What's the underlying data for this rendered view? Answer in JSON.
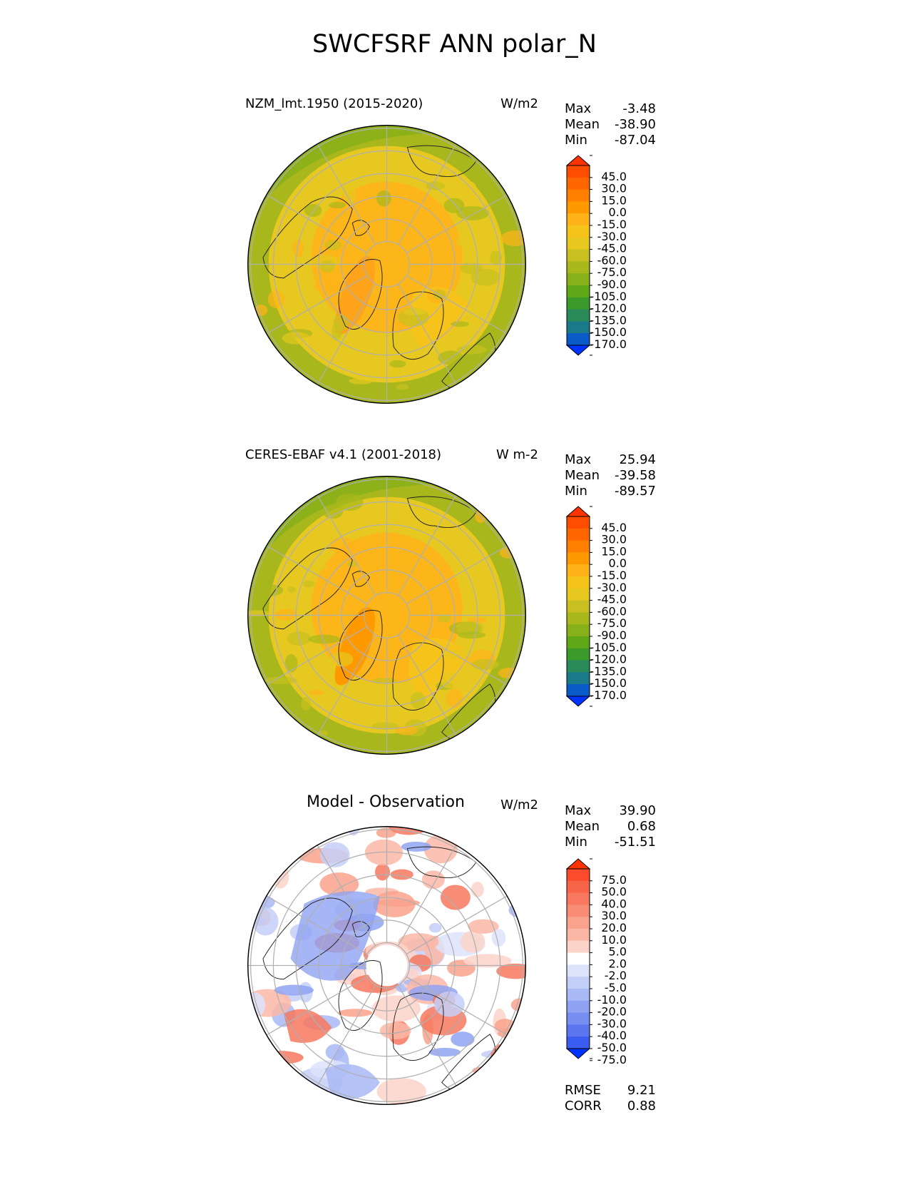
{
  "figure_title": "SWCFSRF ANN polar_N",
  "panels": [
    {
      "title": "NZM_lmt.1950 (2015-2020)",
      "units": "W/m2",
      "stats": {
        "max_label": "Max",
        "max": "-3.48",
        "mean_label": "Mean",
        "mean": "-38.90",
        "min_label": "Min",
        "min": "-87.04"
      }
    },
    {
      "title": "CERES-EBAF v4.1 (2001-2018)",
      "units": "W m-2",
      "stats": {
        "max_label": "Max",
        "max": "25.94",
        "mean_label": "Mean",
        "mean": "-39.58",
        "min_label": "Min",
        "min": "-89.57"
      }
    },
    {
      "title": "Model - Observation",
      "units": "W/m2",
      "stats": {
        "max_label": "Max",
        "max": "39.90",
        "mean_label": "Mean",
        "mean": "0.68",
        "min_label": "Min",
        "min": "-51.51"
      },
      "rmse_label": "RMSE",
      "rmse": "9.21",
      "corr_label": "CORR",
      "corr": "0.88"
    }
  ],
  "chart_data": [
    {
      "type": "heatmap",
      "projection": "north polar stereographic",
      "title": "NZM_lmt.1950 (2015-2020)",
      "units": "W/m2",
      "colorbar_ticks": [
        "45.0",
        "30.0",
        "15.0",
        "0.0",
        "-15.0",
        "-30.0",
        "-45.0",
        "-60.0",
        "-75.0",
        "-90.0",
        "-105.0",
        "-120.0",
        "-135.0",
        "-150.0",
        "-170.0"
      ],
      "colors": [
        "#ff3300",
        "#ff4d00",
        "#ff6600",
        "#ff8000",
        "#ff9900",
        "#ffb31a",
        "#f5c31a",
        "#e6c820",
        "#c8c020",
        "#a8b81c",
        "#88b01a",
        "#5fa818",
        "#3a9a2a",
        "#2a8a5a",
        "#1a7a8a",
        "#0a5ac8",
        "#0033ff"
      ],
      "max": -3.48,
      "mean": -38.9,
      "min": -87.04
    },
    {
      "type": "heatmap",
      "projection": "north polar stereographic",
      "title": "CERES-EBAF v4.1 (2001-2018)",
      "units": "W m-2",
      "colorbar_ticks": [
        "45.0",
        "30.0",
        "15.0",
        "0.0",
        "-15.0",
        "-30.0",
        "-45.0",
        "-60.0",
        "-75.0",
        "-90.0",
        "-105.0",
        "-120.0",
        "-135.0",
        "-150.0",
        "-170.0"
      ],
      "colors": [
        "#ff3300",
        "#ff4d00",
        "#ff6600",
        "#ff8000",
        "#ff9900",
        "#ffb31a",
        "#f5c31a",
        "#e6c820",
        "#c8c020",
        "#a8b81c",
        "#88b01a",
        "#5fa818",
        "#3a9a2a",
        "#2a8a5a",
        "#1a7a8a",
        "#0a5ac8",
        "#0033ff"
      ],
      "max": 25.94,
      "mean": -39.58,
      "min": -89.57
    },
    {
      "type": "heatmap",
      "projection": "north polar stereographic",
      "title": "Model - Observation",
      "units": "W/m2",
      "colorbar_ticks": [
        "75.0",
        "50.0",
        "40.0",
        "30.0",
        "20.0",
        "10.0",
        "5.0",
        "2.0",
        "-2.0",
        "-5.0",
        "-10.0",
        "-20.0",
        "-30.0",
        "-40.0",
        "-50.0",
        "-75.0"
      ],
      "colors": [
        "#ff3300",
        "#fb4a2c",
        "#f86448",
        "#f7785e",
        "#f88c74",
        "#f9a28c",
        "#fbb7a6",
        "#fdd4c9",
        "#ffffff",
        "#dde3fb",
        "#c4cff8",
        "#a9b9f5",
        "#8fa3f2",
        "#768ef0",
        "#5a75ee",
        "#3b5cf0",
        "#0033ff"
      ],
      "max": 39.9,
      "mean": 0.68,
      "min": -51.51,
      "rmse": 9.21,
      "corr": 0.88
    }
  ]
}
